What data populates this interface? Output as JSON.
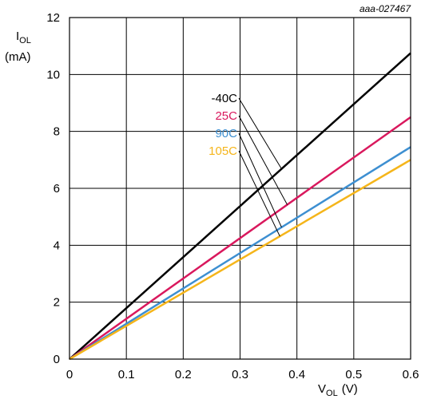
{
  "figure_ref": "aaa-027467",
  "chart_data": {
    "type": "line",
    "title": "",
    "xlabel": {
      "main": "V",
      "sub": "OL",
      "unit": "(V)"
    },
    "ylabel": {
      "main": "I",
      "sub": "OL",
      "unit": "(mA)"
    },
    "xlim": [
      0,
      0.6
    ],
    "ylim": [
      0,
      12
    ],
    "xticks": [
      "0",
      "0.1",
      "0.2",
      "0.3",
      "0.4",
      "0.5",
      "0.6"
    ],
    "yticks": [
      "0",
      "2",
      "4",
      "6",
      "8",
      "10",
      "12"
    ],
    "grid": true,
    "series": [
      {
        "name": "-40C",
        "color": "#000000",
        "x": [
          0,
          0.6
        ],
        "y": [
          0,
          10.75
        ]
      },
      {
        "name": "25C",
        "color": "#d9185d",
        "x": [
          0,
          0.6
        ],
        "y": [
          0,
          8.5
        ]
      },
      {
        "name": "90C",
        "color": "#3d8fd1",
        "x": [
          0,
          0.6
        ],
        "y": [
          0,
          7.45
        ]
      },
      {
        "name": "105C",
        "color": "#f5b51a",
        "x": [
          0,
          0.6
        ],
        "y": [
          0,
          7.0
        ]
      }
    ],
    "annotation_targets_x": [
      0.373,
      0.383,
      0.373,
      0.37
    ]
  }
}
